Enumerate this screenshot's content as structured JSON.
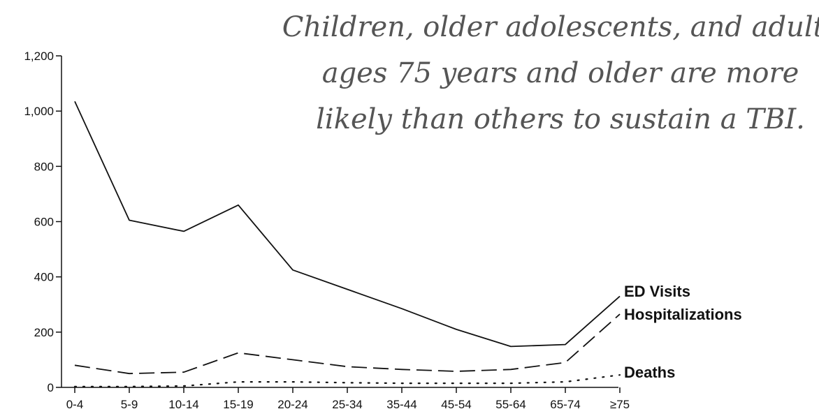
{
  "chart_data": {
    "type": "line",
    "annotation": [
      "Children, older adolescents, and adults",
      "ages 75 years and older are more",
      "likely than others to sustain a TBI."
    ],
    "categories": [
      "0-4",
      "5-9",
      "10-14",
      "15-19",
      "20-24",
      "25-34",
      "35-44",
      "45-54",
      "55-64",
      "65-74",
      "≥75"
    ],
    "y_ticks": [
      "0",
      "200",
      "400",
      "600",
      "800",
      "1,000",
      "1,200"
    ],
    "ylim": [
      0,
      1200
    ],
    "grid": false,
    "legend": "inline labels at right end of series",
    "series": [
      {
        "name": "ED Visits",
        "style": "solid",
        "values": [
          1035,
          605,
          565,
          660,
          425,
          355,
          285,
          210,
          148,
          155,
          330
        ]
      },
      {
        "name": "Hospitalizations",
        "style": "dashed",
        "values": [
          80,
          50,
          55,
          125,
          100,
          75,
          65,
          58,
          65,
          90,
          265
        ]
      },
      {
        "name": "Deaths",
        "style": "dotted",
        "values": [
          3,
          3,
          5,
          20,
          20,
          17,
          15,
          15,
          15,
          20,
          45
        ]
      }
    ],
    "colors": {
      "line": "#111111",
      "annotation": "#555555"
    }
  }
}
